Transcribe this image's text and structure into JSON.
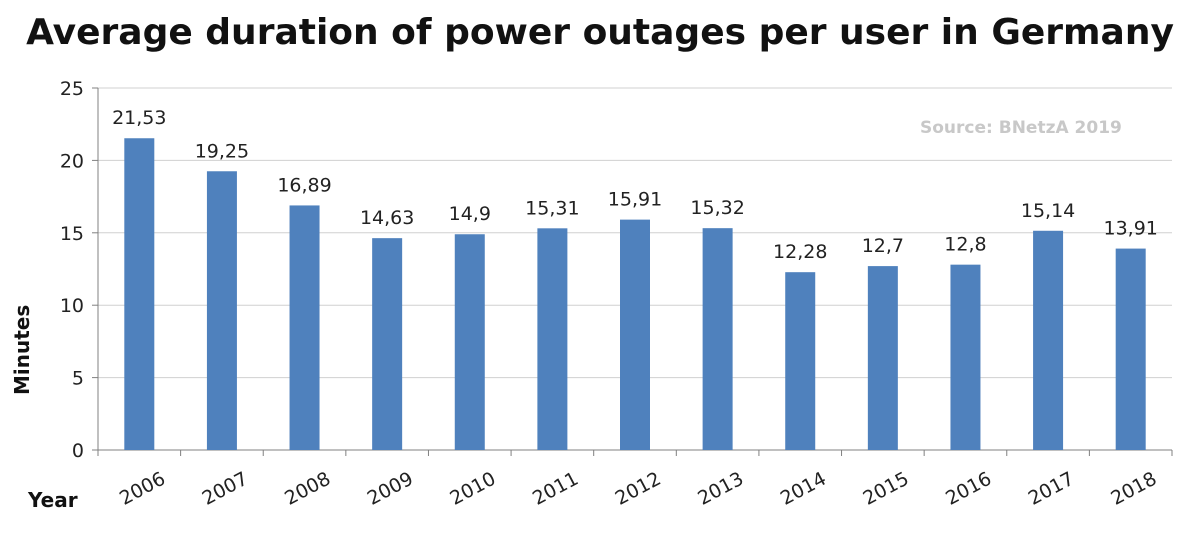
{
  "chart_data": {
    "type": "bar",
    "title": "Average duration of power outages per user in Germany",
    "source": "Source: BNetzA 2019",
    "xlabel": "Year",
    "ylabel": "Minutes",
    "categories": [
      "2006",
      "2007",
      "2008",
      "2009",
      "2010",
      "2011",
      "2012",
      "2013",
      "2014",
      "2015",
      "2016",
      "2017",
      "2018"
    ],
    "values": [
      21.53,
      19.25,
      16.89,
      14.63,
      14.9,
      15.31,
      15.91,
      15.32,
      12.28,
      12.7,
      12.8,
      15.14,
      13.91
    ],
    "data_labels": [
      "21,53",
      "19,25",
      "16,89",
      "14,63",
      "14,9",
      "15,31",
      "15,91",
      "15,32",
      "12,28",
      "12,7",
      "12,8",
      "15,14",
      "13,91"
    ],
    "ylim": [
      0,
      25
    ],
    "yticks": [
      0,
      5,
      10,
      15,
      20,
      25
    ],
    "grid": true,
    "legend": false,
    "bar_color": "#4f81bd"
  }
}
